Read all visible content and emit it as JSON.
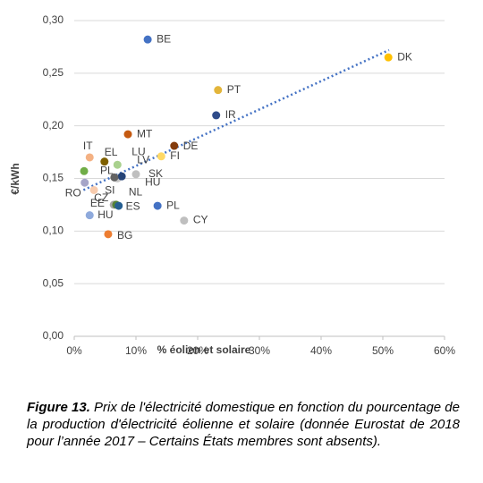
{
  "chart_data": {
    "type": "scatter",
    "x_label": "% éolien et solaire",
    "y_label": "€/kWh",
    "labels": [
      "BE",
      "DK",
      "PT",
      "IR",
      "MT",
      "DE",
      "FI",
      "IT",
      "EL",
      "LU",
      "LV",
      "PL",
      "RO",
      "SI",
      "SK",
      "HU",
      "NL",
      "CZ",
      "EE",
      "ES",
      "HU",
      "BG",
      "PL",
      "CY"
    ],
    "x": [
      11.9,
      50.9,
      23.3,
      23.0,
      8.7,
      16.2,
      14.1,
      2.5,
      4.9,
      7.0,
      7.0,
      1.6,
      1.7,
      3.2,
      10.0,
      7.7,
      6.5,
      6.4,
      6.8,
      7.2,
      2.5,
      5.5,
      13.5,
      17.8
    ],
    "values": [
      0.282,
      0.265,
      0.234,
      0.21,
      0.192,
      0.181,
      0.171,
      0.17,
      0.166,
      0.163,
      0.15,
      0.157,
      0.146,
      0.139,
      0.154,
      0.152,
      0.151,
      0.125,
      0.125,
      0.124,
      0.115,
      0.097,
      0.124,
      0.11
    ],
    "colors": [
      "#4472c4",
      "#ffc000",
      "#e3b53a",
      "#2f4c8a",
      "#c55a11",
      "#843c0c",
      "#ffd966",
      "#f4b183",
      "#7f6000",
      "#a9d18e",
      "#c9c9c9",
      "#70ad47",
      "#a5a5c8",
      "#f8cbad",
      "#bfbfbf",
      "#264478",
      "#636363",
      "#a5a5a5",
      "#548235",
      "#255e91",
      "#8faadc",
      "#ed7d31",
      "#4472c4",
      "#bfbfbf"
    ],
    "trendline": {
      "x": [
        1.5,
        51
      ],
      "values": [
        0.139,
        0.272
      ],
      "color": "#4472c4"
    },
    "xlim": [
      0,
      60
    ],
    "xticks": [
      {
        "value": 0,
        "label": "0%"
      },
      {
        "value": 10,
        "label": "10%"
      },
      {
        "value": 20,
        "label": "20%"
      },
      {
        "value": 30,
        "label": "30%"
      },
      {
        "value": 40,
        "label": "40%"
      },
      {
        "value": 50,
        "label": "50%"
      },
      {
        "value": 60,
        "label": "60%"
      }
    ],
    "ylim": [
      0,
      0.3
    ],
    "yticks": [
      {
        "value": 0,
        "label": "0,00"
      },
      {
        "value": 0.05,
        "label": "0,05"
      },
      {
        "value": 0.1,
        "label": "0,10"
      },
      {
        "value": 0.15,
        "label": "0,15"
      },
      {
        "value": 0.2,
        "label": "0,20"
      },
      {
        "value": 0.25,
        "label": "0,25"
      },
      {
        "value": 0.3,
        "label": "0,30"
      }
    ],
    "grid": true
  },
  "caption": {
    "label": "Figure 13.",
    "text": "Prix de l'électricité domestique en fonction du pourcentage de la production d'électricité éolienne et solaire (donnée Eurostat de 2018 pour l’année 2017 – Certains États membres sont absents)."
  }
}
